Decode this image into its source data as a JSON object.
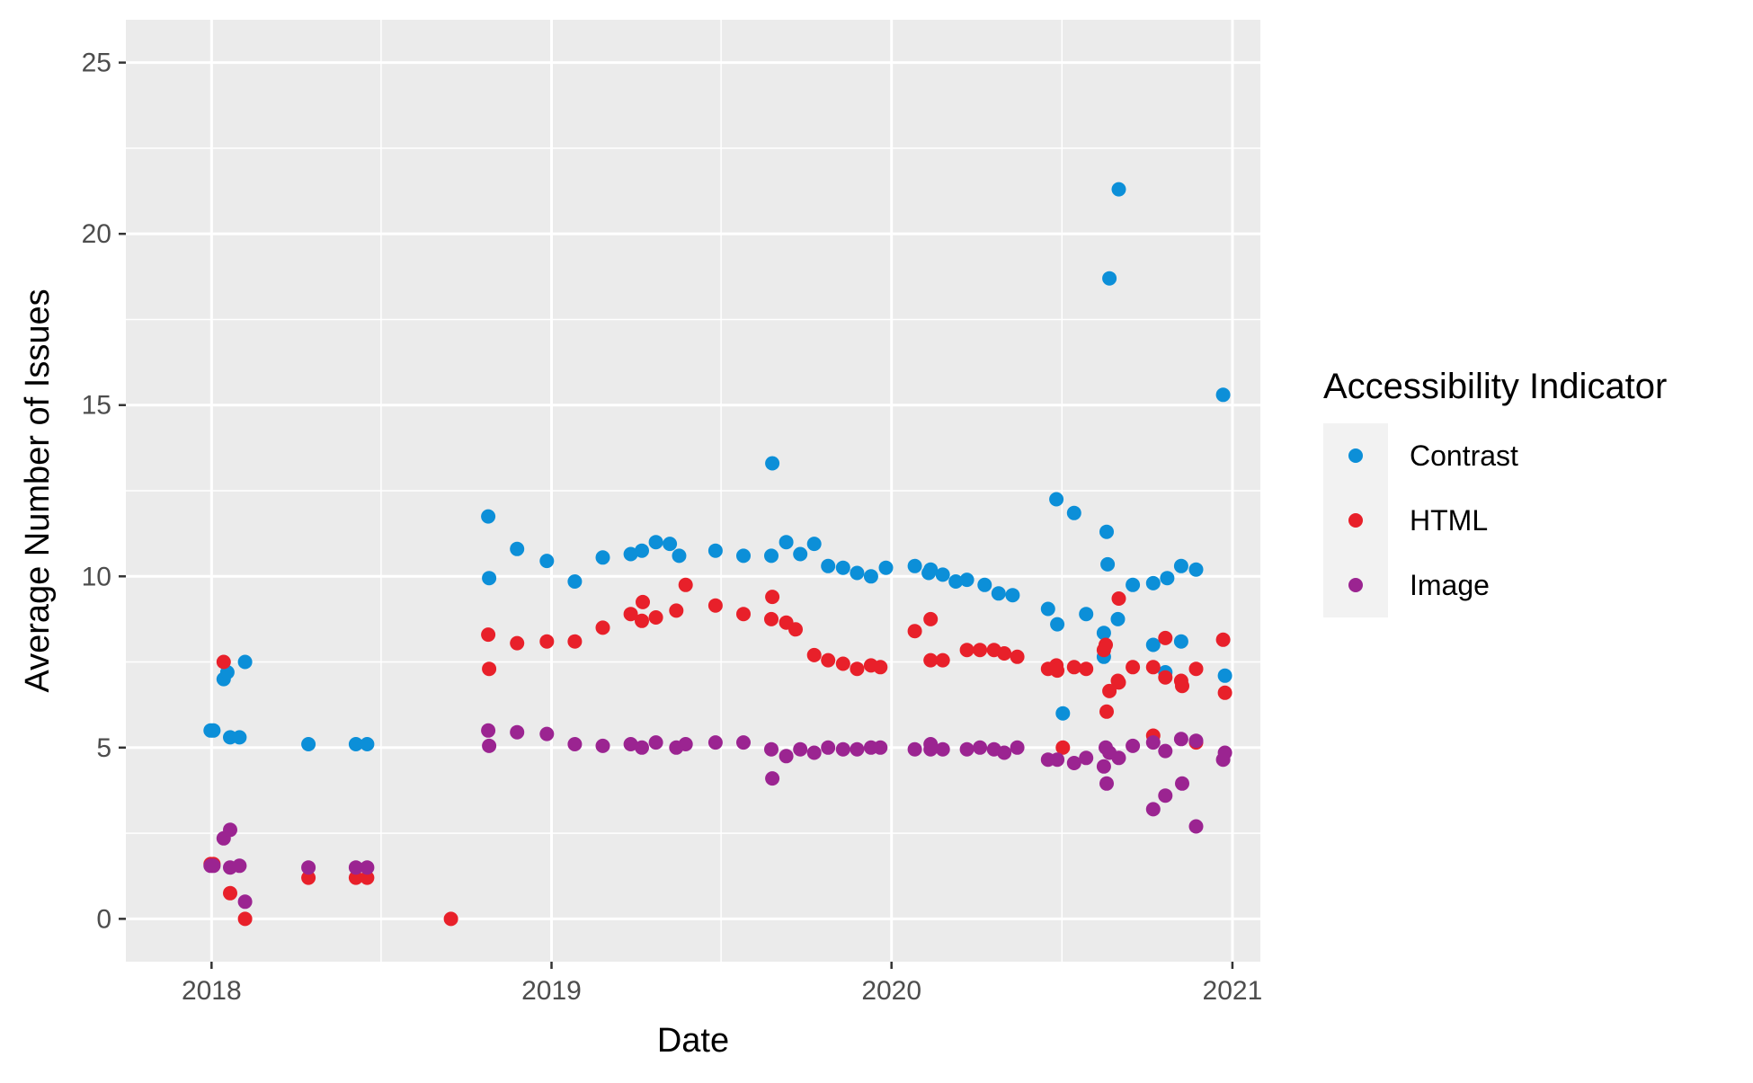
{
  "chart_data": {
    "type": "scatter",
    "xlabel": "Date",
    "ylabel": "Average Number of Issues",
    "xlim": [
      "2017-10-01",
      "2021-01-31"
    ],
    "ylim": [
      -1.25,
      26.25
    ],
    "x_ticks": [
      "2018",
      "2019",
      "2020",
      "2021"
    ],
    "y_ticks": [
      0,
      5,
      10,
      15,
      20,
      25
    ],
    "grid": true,
    "legend": {
      "title": "Accessibility Indicator",
      "position": "right"
    },
    "series": [
      {
        "name": "Contrast",
        "color": "#0c8fd8",
        "points": [
          {
            "x": "2017-12-31",
            "y": 5.5
          },
          {
            "x": "2018-01-03",
            "y": 5.5
          },
          {
            "x": "2018-01-14",
            "y": 7.0
          },
          {
            "x": "2018-01-18",
            "y": 7.2
          },
          {
            "x": "2018-01-21",
            "y": 5.3
          },
          {
            "x": "2018-01-31",
            "y": 5.3
          },
          {
            "x": "2018-02-06",
            "y": 7.5
          },
          {
            "x": "2018-04-15",
            "y": 5.1
          },
          {
            "x": "2018-06-05",
            "y": 5.1
          },
          {
            "x": "2018-06-17",
            "y": 5.1
          },
          {
            "x": "2018-10-25",
            "y": 11.75
          },
          {
            "x": "2018-10-26",
            "y": 9.95
          },
          {
            "x": "2018-11-25",
            "y": 10.8
          },
          {
            "x": "2018-12-27",
            "y": 10.45
          },
          {
            "x": "2019-01-26",
            "y": 9.85
          },
          {
            "x": "2019-02-25",
            "y": 10.55
          },
          {
            "x": "2019-03-27",
            "y": 10.65
          },
          {
            "x": "2019-04-08",
            "y": 10.75
          },
          {
            "x": "2019-04-23",
            "y": 11.0
          },
          {
            "x": "2019-05-08",
            "y": 10.95
          },
          {
            "x": "2019-05-18",
            "y": 10.6
          },
          {
            "x": "2019-06-26",
            "y": 10.75
          },
          {
            "x": "2019-07-26",
            "y": 10.6
          },
          {
            "x": "2019-08-25",
            "y": 10.6
          },
          {
            "x": "2019-08-26",
            "y": 13.3
          },
          {
            "x": "2019-09-10",
            "y": 11.0
          },
          {
            "x": "2019-09-25",
            "y": 10.65
          },
          {
            "x": "2019-10-10",
            "y": 10.95
          },
          {
            "x": "2019-10-25",
            "y": 10.3
          },
          {
            "x": "2019-11-10",
            "y": 10.25
          },
          {
            "x": "2019-11-25",
            "y": 10.1
          },
          {
            "x": "2019-12-10",
            "y": 10.0
          },
          {
            "x": "2019-12-26",
            "y": 10.25
          },
          {
            "x": "2020-01-26",
            "y": 10.3
          },
          {
            "x": "2020-02-10",
            "y": 10.1
          },
          {
            "x": "2020-02-12",
            "y": 10.2
          },
          {
            "x": "2020-02-25",
            "y": 10.05
          },
          {
            "x": "2020-03-10",
            "y": 9.85
          },
          {
            "x": "2020-03-22",
            "y": 9.9
          },
          {
            "x": "2020-04-10",
            "y": 9.75
          },
          {
            "x": "2020-04-25",
            "y": 9.5
          },
          {
            "x": "2020-05-10",
            "y": 9.45
          },
          {
            "x": "2020-06-17",
            "y": 9.05
          },
          {
            "x": "2020-06-26",
            "y": 12.25
          },
          {
            "x": "2020-06-27",
            "y": 8.6
          },
          {
            "x": "2020-07-03",
            "y": 6.0
          },
          {
            "x": "2020-07-15",
            "y": 11.85
          },
          {
            "x": "2020-07-28",
            "y": 8.9
          },
          {
            "x": "2020-08-16",
            "y": 8.35
          },
          {
            "x": "2020-08-16",
            "y": 7.65
          },
          {
            "x": "2020-08-19",
            "y": 11.3
          },
          {
            "x": "2020-08-20",
            "y": 10.35
          },
          {
            "x": "2020-08-22",
            "y": 18.7
          },
          {
            "x": "2020-09-01",
            "y": 21.3
          },
          {
            "x": "2020-08-31",
            "y": 8.75
          },
          {
            "x": "2020-09-16",
            "y": 9.75
          },
          {
            "x": "2020-10-08",
            "y": 9.8
          },
          {
            "x": "2020-10-08",
            "y": 8.0
          },
          {
            "x": "2020-10-21",
            "y": 7.2
          },
          {
            "x": "2020-10-23",
            "y": 9.95
          },
          {
            "x": "2020-11-07",
            "y": 10.3
          },
          {
            "x": "2020-11-07",
            "y": 8.1
          },
          {
            "x": "2020-11-23",
            "y": 10.2
          },
          {
            "x": "2020-12-22",
            "y": 15.3
          },
          {
            "x": "2020-12-24",
            "y": 7.1
          }
        ]
      },
      {
        "name": "HTML",
        "color": "#e8202a",
        "points": [
          {
            "x": "2017-12-31",
            "y": 1.6
          },
          {
            "x": "2018-01-03",
            "y": 1.6
          },
          {
            "x": "2018-01-14",
            "y": 7.5
          },
          {
            "x": "2018-01-21",
            "y": 0.75
          },
          {
            "x": "2018-02-06",
            "y": 0.0
          },
          {
            "x": "2018-04-15",
            "y": 1.2
          },
          {
            "x": "2018-06-05",
            "y": 1.2
          },
          {
            "x": "2018-06-17",
            "y": 1.2
          },
          {
            "x": "2018-09-15",
            "y": 0.0
          },
          {
            "x": "2018-10-25",
            "y": 8.3
          },
          {
            "x": "2018-10-26",
            "y": 7.3
          },
          {
            "x": "2018-11-25",
            "y": 8.05
          },
          {
            "x": "2018-12-27",
            "y": 8.1
          },
          {
            "x": "2019-01-26",
            "y": 8.1
          },
          {
            "x": "2019-02-25",
            "y": 8.5
          },
          {
            "x": "2019-03-27",
            "y": 8.9
          },
          {
            "x": "2019-04-08",
            "y": 8.7
          },
          {
            "x": "2019-04-09",
            "y": 9.25
          },
          {
            "x": "2019-04-23",
            "y": 8.8
          },
          {
            "x": "2019-05-15",
            "y": 9.0
          },
          {
            "x": "2019-05-25",
            "y": 9.75
          },
          {
            "x": "2019-06-26",
            "y": 9.15
          },
          {
            "x": "2019-07-26",
            "y": 8.9
          },
          {
            "x": "2019-08-25",
            "y": 8.75
          },
          {
            "x": "2019-08-26",
            "y": 9.4
          },
          {
            "x": "2019-09-10",
            "y": 8.65
          },
          {
            "x": "2019-09-20",
            "y": 8.45
          },
          {
            "x": "2019-10-10",
            "y": 7.7
          },
          {
            "x": "2019-10-25",
            "y": 7.55
          },
          {
            "x": "2019-11-10",
            "y": 7.45
          },
          {
            "x": "2019-11-25",
            "y": 7.3
          },
          {
            "x": "2019-12-10",
            "y": 7.4
          },
          {
            "x": "2019-12-20",
            "y": 7.35
          },
          {
            "x": "2020-01-26",
            "y": 8.4
          },
          {
            "x": "2020-02-12",
            "y": 8.75
          },
          {
            "x": "2020-02-12",
            "y": 7.55
          },
          {
            "x": "2020-02-25",
            "y": 7.55
          },
          {
            "x": "2020-03-22",
            "y": 7.85
          },
          {
            "x": "2020-04-05",
            "y": 7.85
          },
          {
            "x": "2020-04-20",
            "y": 7.85
          },
          {
            "x": "2020-05-01",
            "y": 7.75
          },
          {
            "x": "2020-05-15",
            "y": 7.65
          },
          {
            "x": "2020-06-17",
            "y": 7.3
          },
          {
            "x": "2020-06-26",
            "y": 7.4
          },
          {
            "x": "2020-06-27",
            "y": 7.25
          },
          {
            "x": "2020-07-03",
            "y": 5.0
          },
          {
            "x": "2020-07-15",
            "y": 7.35
          },
          {
            "x": "2020-07-28",
            "y": 7.3
          },
          {
            "x": "2020-08-16",
            "y": 7.85
          },
          {
            "x": "2020-08-18",
            "y": 8.0
          },
          {
            "x": "2020-08-19",
            "y": 6.05
          },
          {
            "x": "2020-08-22",
            "y": 6.65
          },
          {
            "x": "2020-08-31",
            "y": 6.95
          },
          {
            "x": "2020-09-01",
            "y": 9.35
          },
          {
            "x": "2020-09-01",
            "y": 6.9
          },
          {
            "x": "2020-09-16",
            "y": 7.35
          },
          {
            "x": "2020-10-08",
            "y": 7.35
          },
          {
            "x": "2020-10-08",
            "y": 5.35
          },
          {
            "x": "2020-10-21",
            "y": 8.2
          },
          {
            "x": "2020-10-21",
            "y": 7.05
          },
          {
            "x": "2020-11-07",
            "y": 6.95
          },
          {
            "x": "2020-11-08",
            "y": 6.8
          },
          {
            "x": "2020-11-23",
            "y": 7.3
          },
          {
            "x": "2020-11-23",
            "y": 5.15
          },
          {
            "x": "2020-12-22",
            "y": 8.15
          },
          {
            "x": "2020-12-24",
            "y": 6.6
          }
        ]
      },
      {
        "name": "Image",
        "color": "#9b2491",
        "points": [
          {
            "x": "2017-12-31",
            "y": 1.55
          },
          {
            "x": "2018-01-03",
            "y": 1.55
          },
          {
            "x": "2018-01-14",
            "y": 2.35
          },
          {
            "x": "2018-01-21",
            "y": 2.6
          },
          {
            "x": "2018-01-21",
            "y": 1.5
          },
          {
            "x": "2018-01-31",
            "y": 1.55
          },
          {
            "x": "2018-02-06",
            "y": 0.5
          },
          {
            "x": "2018-04-15",
            "y": 1.5
          },
          {
            "x": "2018-06-05",
            "y": 1.5
          },
          {
            "x": "2018-06-17",
            "y": 1.5
          },
          {
            "x": "2018-10-25",
            "y": 5.5
          },
          {
            "x": "2018-10-26",
            "y": 5.05
          },
          {
            "x": "2018-11-25",
            "y": 5.45
          },
          {
            "x": "2018-12-27",
            "y": 5.4
          },
          {
            "x": "2019-01-26",
            "y": 5.1
          },
          {
            "x": "2019-02-25",
            "y": 5.05
          },
          {
            "x": "2019-03-27",
            "y": 5.1
          },
          {
            "x": "2019-04-08",
            "y": 5.0
          },
          {
            "x": "2019-04-23",
            "y": 5.15
          },
          {
            "x": "2019-05-15",
            "y": 5.0
          },
          {
            "x": "2019-05-25",
            "y": 5.1
          },
          {
            "x": "2019-06-26",
            "y": 5.15
          },
          {
            "x": "2019-07-26",
            "y": 5.15
          },
          {
            "x": "2019-08-25",
            "y": 4.95
          },
          {
            "x": "2019-08-26",
            "y": 4.1
          },
          {
            "x": "2019-09-10",
            "y": 4.75
          },
          {
            "x": "2019-09-25",
            "y": 4.95
          },
          {
            "x": "2019-10-10",
            "y": 4.85
          },
          {
            "x": "2019-10-25",
            "y": 5.0
          },
          {
            "x": "2019-11-10",
            "y": 4.95
          },
          {
            "x": "2019-11-25",
            "y": 4.95
          },
          {
            "x": "2019-12-10",
            "y": 5.0
          },
          {
            "x": "2019-12-20",
            "y": 5.0
          },
          {
            "x": "2020-01-26",
            "y": 4.95
          },
          {
            "x": "2020-02-12",
            "y": 5.1
          },
          {
            "x": "2020-02-12",
            "y": 4.95
          },
          {
            "x": "2020-02-25",
            "y": 4.95
          },
          {
            "x": "2020-03-22",
            "y": 4.95
          },
          {
            "x": "2020-04-05",
            "y": 5.0
          },
          {
            "x": "2020-04-20",
            "y": 4.95
          },
          {
            "x": "2020-05-01",
            "y": 4.85
          },
          {
            "x": "2020-05-15",
            "y": 5.0
          },
          {
            "x": "2020-06-17",
            "y": 4.65
          },
          {
            "x": "2020-06-27",
            "y": 4.65
          },
          {
            "x": "2020-07-15",
            "y": 4.55
          },
          {
            "x": "2020-07-28",
            "y": 4.7
          },
          {
            "x": "2020-08-16",
            "y": 4.45
          },
          {
            "x": "2020-08-18",
            "y": 5.0
          },
          {
            "x": "2020-08-19",
            "y": 3.95
          },
          {
            "x": "2020-08-22",
            "y": 4.85
          },
          {
            "x": "2020-09-01",
            "y": 4.7
          },
          {
            "x": "2020-09-16",
            "y": 5.05
          },
          {
            "x": "2020-10-08",
            "y": 5.15
          },
          {
            "x": "2020-10-08",
            "y": 3.2
          },
          {
            "x": "2020-10-21",
            "y": 4.9
          },
          {
            "x": "2020-10-21",
            "y": 3.6
          },
          {
            "x": "2020-11-07",
            "y": 5.25
          },
          {
            "x": "2020-11-08",
            "y": 3.95
          },
          {
            "x": "2020-11-23",
            "y": 5.2
          },
          {
            "x": "2020-11-23",
            "y": 2.7
          },
          {
            "x": "2020-12-22",
            "y": 4.65
          },
          {
            "x": "2020-12-24",
            "y": 4.85
          }
        ]
      }
    ]
  }
}
